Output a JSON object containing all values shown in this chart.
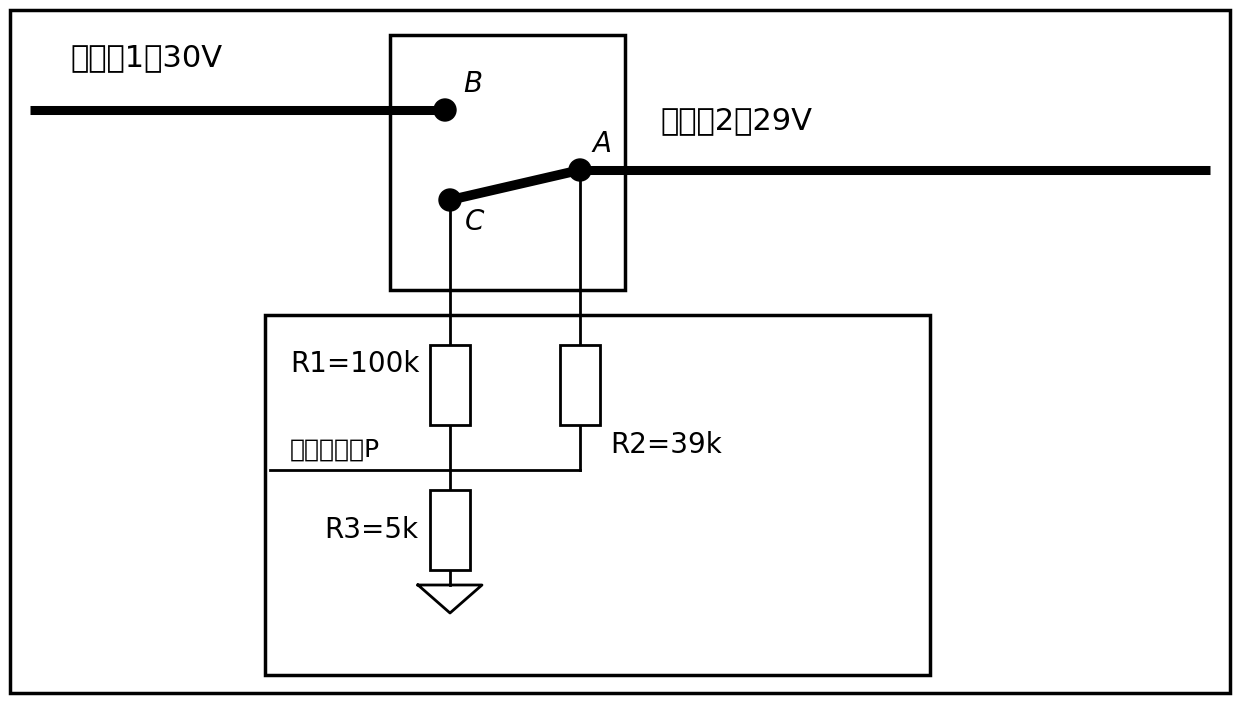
{
  "line_color": "#000000",
  "label_spacecraft1": "航天器1：30V",
  "label_spacecraft2": "航天器2：29V",
  "label_R1": "R1=100k",
  "label_R2": "R2=39k",
  "label_R3": "R3=5k",
  "label_state": "状态输出：P",
  "label_A": "A",
  "label_B": "B",
  "label_C": "C",
  "font_size_labels": 22,
  "font_size_abc": 20,
  "font_size_circuit": 20,
  "font_size_state": 18
}
